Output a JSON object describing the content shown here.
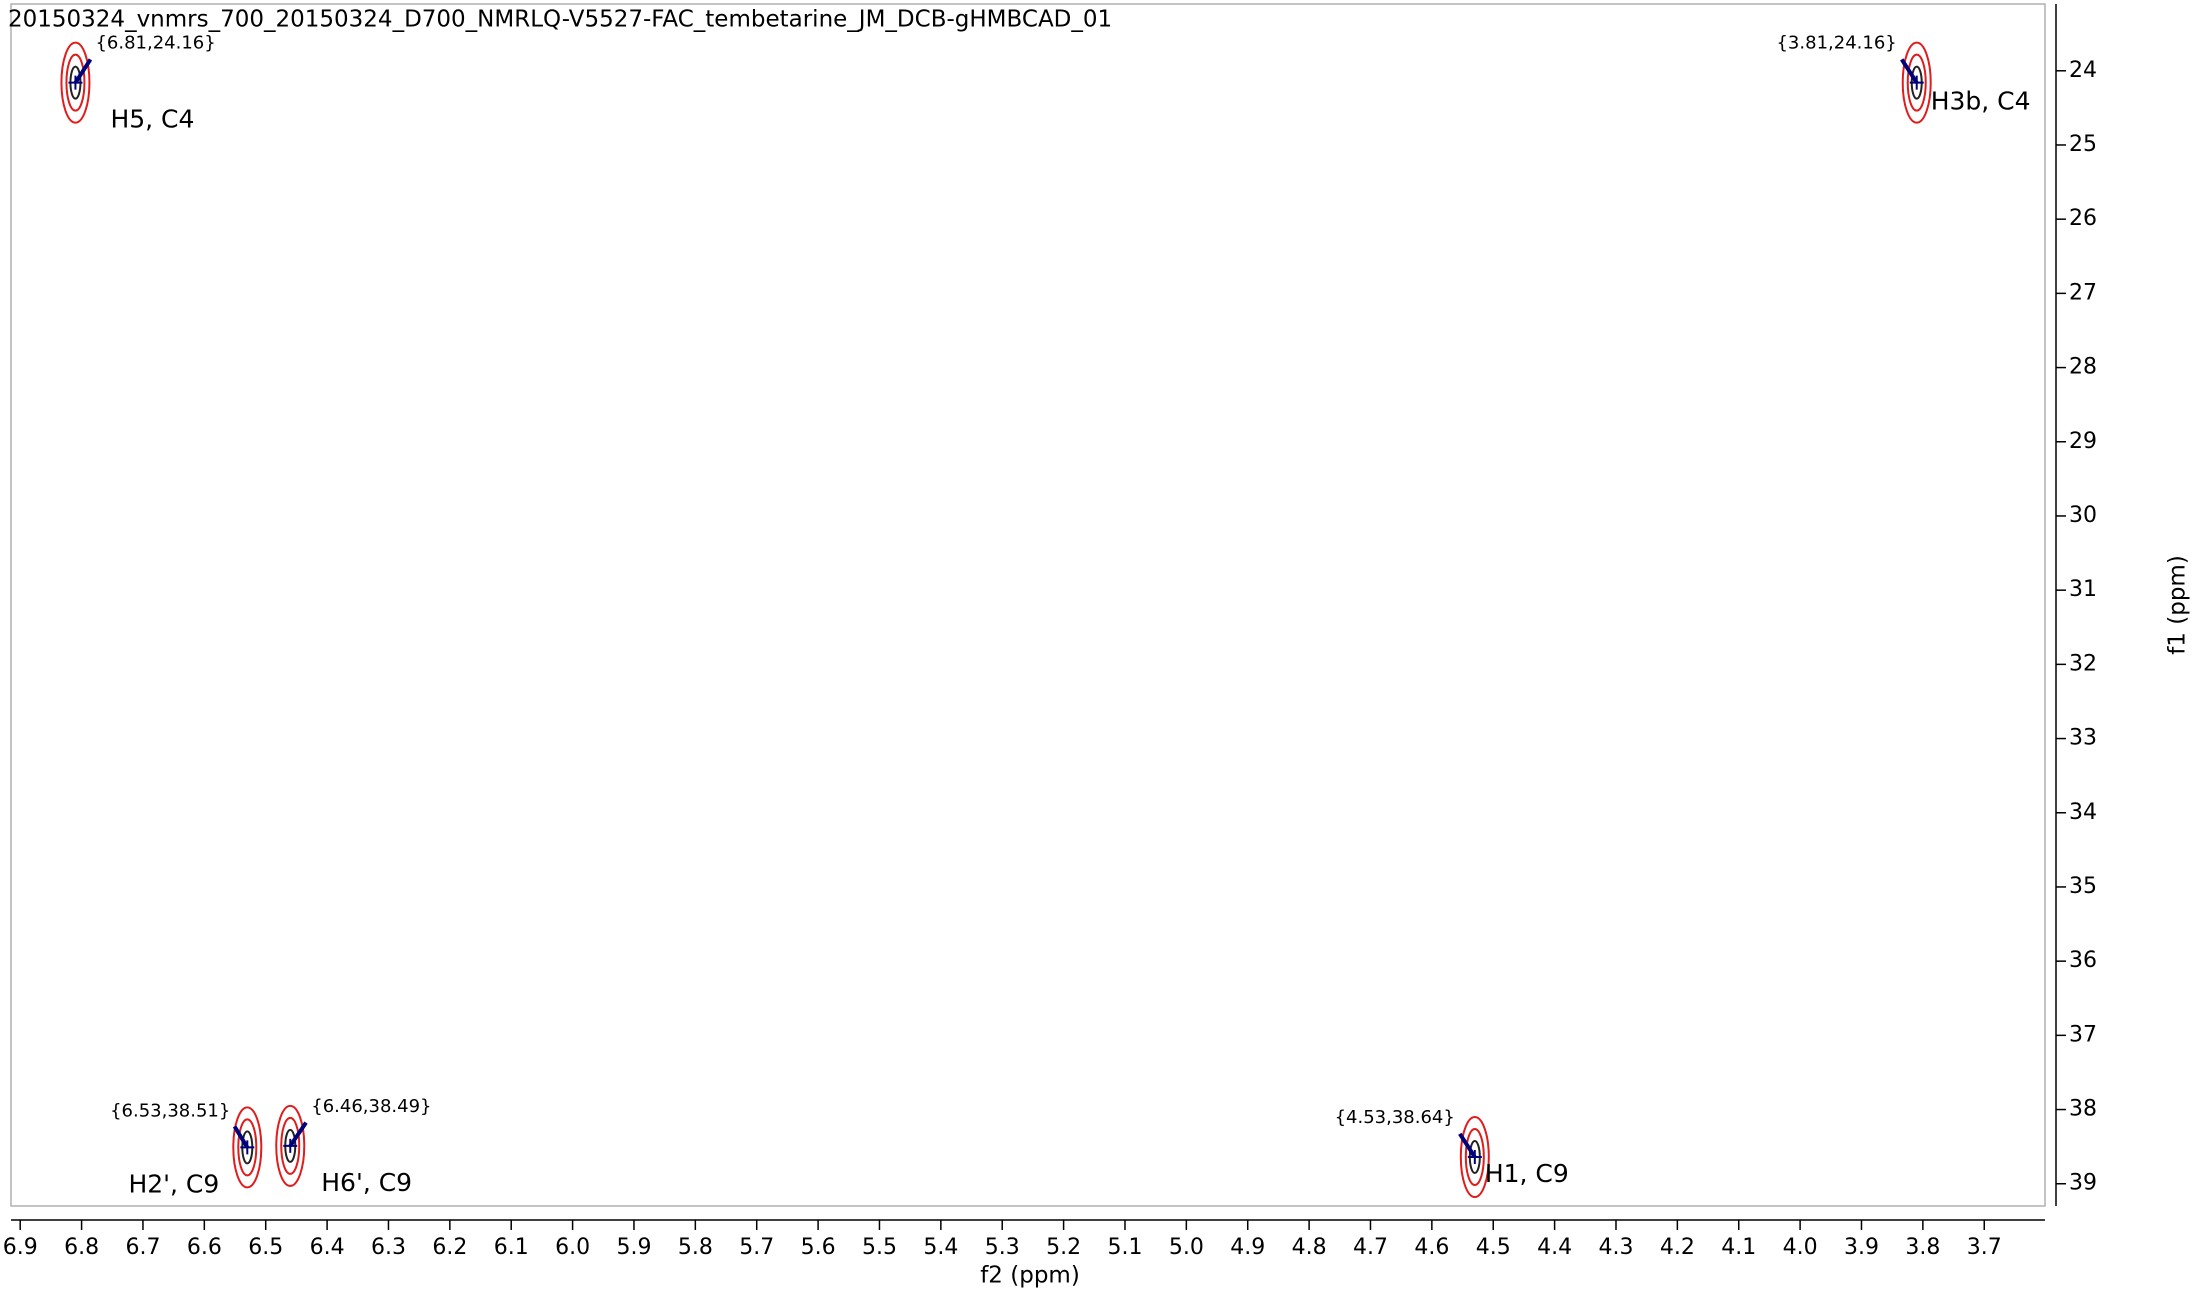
{
  "chart_data": {
    "type": "contour",
    "title": "20150324_vnmrs_700_20150324_D700_NMRLQ-V5527-FAC_tembetarine_JM_DCB-gHMBCAD_01",
    "x_label": "f2 (ppm)",
    "y_label": "f1 (ppm)",
    "x": [
      6.81,
      3.81,
      6.53,
      6.46,
      4.53
    ],
    "y": [
      24.16,
      24.16,
      38.51,
      38.49,
      38.64
    ],
    "value_labels": [
      "{6.81,24.16}",
      "{3.81,24.16}",
      "{6.53,38.51}",
      "{6.46,38.49}",
      "{4.53,38.64}"
    ],
    "annotations": [
      "H5, C4",
      "H3b, C4",
      "H2', C9",
      "H6', C9",
      "H1, C9"
    ],
    "color": "#e01c1c",
    "label_color": "#00007a",
    "xlim": [
      6.915,
      3.601
    ],
    "ylim": [
      23.1,
      39.3
    ],
    "xticks": [
      6.9,
      6.8,
      6.7,
      6.6,
      6.5,
      6.4,
      6.3,
      6.2,
      6.1,
      {
        "value": 6.0,
        "label": "6.0"
      },
      5.9,
      5.8,
      5.7,
      5.6,
      5.5,
      5.4,
      5.3,
      5.2,
      5.1,
      {
        "value": 5.0,
        "label": "5.0"
      },
      4.9,
      4.8,
      4.7,
      4.6,
      4.5,
      4.4,
      4.3,
      4.2,
      4.1,
      {
        "value": 4.0,
        "label": "4.0"
      },
      3.9,
      3.8,
      3.7
    ],
    "yticks": [
      24,
      25,
      26,
      27,
      28,
      29,
      30,
      31,
      32,
      33,
      34,
      35,
      36,
      37,
      38,
      39
    ]
  }
}
